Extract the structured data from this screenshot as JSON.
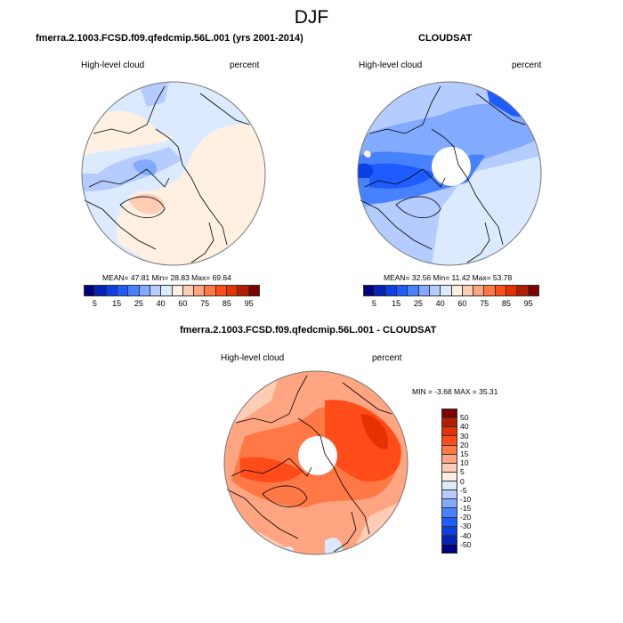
{
  "title": "DJF",
  "colorbar_levels": [
    "5",
    "15",
    "25",
    "40",
    "60",
    "75",
    "85",
    "95"
  ],
  "colorbar_colors": [
    "#00007f",
    "#0323b4",
    "#0a40e6",
    "#1e5cff",
    "#4682ff",
    "#82aaff",
    "#b4ccff",
    "#dceaff",
    "#fff0e1",
    "#ffccb4",
    "#ffa582",
    "#ff7846",
    "#ff4c19",
    "#e63200",
    "#b41e00",
    "#7f0000"
  ],
  "diff_colorbar_labels": [
    "50",
    "40",
    "30",
    "20",
    "15",
    "10",
    "5",
    "0",
    "-5",
    "-10",
    "-15",
    "-20",
    "-30",
    "-40",
    "-50"
  ],
  "diff_colorbar_colors": [
    "#7f0000",
    "#b41e00",
    "#e63200",
    "#ff4c19",
    "#ff7846",
    "#ffa582",
    "#ffccb4",
    "#fff0e1",
    "#dceaff",
    "#b4ccff",
    "#82aaff",
    "#4682ff",
    "#1e5cff",
    "#0a40e6",
    "#0323b4",
    "#00007f"
  ],
  "panels": {
    "model": {
      "title": "fmerra.2.1003.FCSD.f09.qfedcmip.56L.001 (yrs 2001-2014)",
      "variable": "High-level cloud",
      "units": "percent",
      "stats": "MEAN=  47.81  Min=  28.83  Max=  69.64",
      "mean": 47.81,
      "min": 28.83,
      "max": 69.64
    },
    "obs": {
      "title": "CLOUDSAT",
      "variable": "High-level cloud",
      "units": "percent",
      "stats": "MEAN=  32.56  Min=  11.42  Max=  53.78",
      "mean": 32.56,
      "min": 11.42,
      "max": 53.78
    },
    "diff": {
      "title": "fmerra.2.1003.FCSD.f09.qfedcmip.56L.001 - CLOUDSAT",
      "variable": "High-level cloud",
      "units": "percent",
      "stats": "MIN =  -3.68 MAX =  35.31",
      "min": -3.68,
      "max": 35.31
    }
  }
}
